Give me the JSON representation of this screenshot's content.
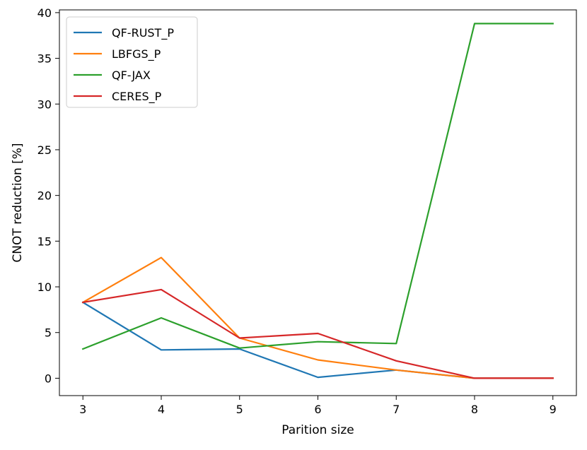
{
  "chart_data": {
    "type": "line",
    "xlabel": "Parition size",
    "ylabel": "CNOT reduction [%]",
    "x": [
      3,
      4,
      5,
      6,
      7,
      8,
      9
    ],
    "xticks": [
      "3",
      "4",
      "5",
      "6",
      "7",
      "8",
      "9"
    ],
    "yticks": [
      "0",
      "5",
      "10",
      "15",
      "20",
      "25",
      "30",
      "35",
      "40"
    ],
    "xlim": [
      2.7,
      9.3
    ],
    "ylim": [
      -1.9,
      40.3
    ],
    "grid": false,
    "legend_position": "upper-left",
    "series": [
      {
        "name": "QF-RUST_P",
        "color": "#1f77b4",
        "values": [
          8.3,
          3.1,
          3.2,
          0.1,
          0.9,
          0.0,
          0.0
        ]
      },
      {
        "name": "LBFGS_P",
        "color": "#ff7f0e",
        "values": [
          8.3,
          13.2,
          4.4,
          2.0,
          0.9,
          0.0,
          0.0
        ]
      },
      {
        "name": "QF-JAX",
        "color": "#2ca02c",
        "values": [
          3.2,
          6.6,
          3.3,
          4.0,
          3.8,
          38.8,
          38.8
        ]
      },
      {
        "name": "CERES_P",
        "color": "#d62728",
        "values": [
          8.3,
          9.7,
          4.4,
          4.9,
          1.9,
          0.0,
          0.0
        ]
      }
    ]
  }
}
